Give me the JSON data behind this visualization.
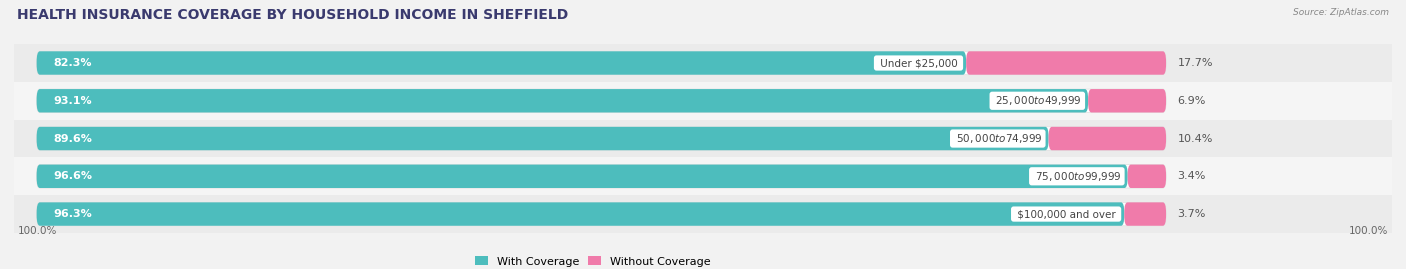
{
  "title": "HEALTH INSURANCE COVERAGE BY HOUSEHOLD INCOME IN SHEFFIELD",
  "source": "Source: ZipAtlas.com",
  "categories": [
    "Under $25,000",
    "$25,000 to $49,999",
    "$50,000 to $74,999",
    "$75,000 to $99,999",
    "$100,000 and over"
  ],
  "with_coverage": [
    82.3,
    93.1,
    89.6,
    96.6,
    96.3
  ],
  "without_coverage": [
    17.7,
    6.9,
    10.4,
    3.4,
    3.7
  ],
  "color_with": "#4dbdbd",
  "color_without": "#f07baa",
  "bar_height": 0.62,
  "background_color": "#f2f2f2",
  "bar_bg_color": "#ffffff",
  "row_bg_even": "#ebebeb",
  "row_bg_odd": "#f5f5f5",
  "title_fontsize": 10,
  "label_fontsize": 8,
  "cat_fontsize": 7.5,
  "legend_fontsize": 8,
  "axis_label_fontsize": 7.5,
  "total": 100.0,
  "xlim_left": -2,
  "xlim_right": 120
}
